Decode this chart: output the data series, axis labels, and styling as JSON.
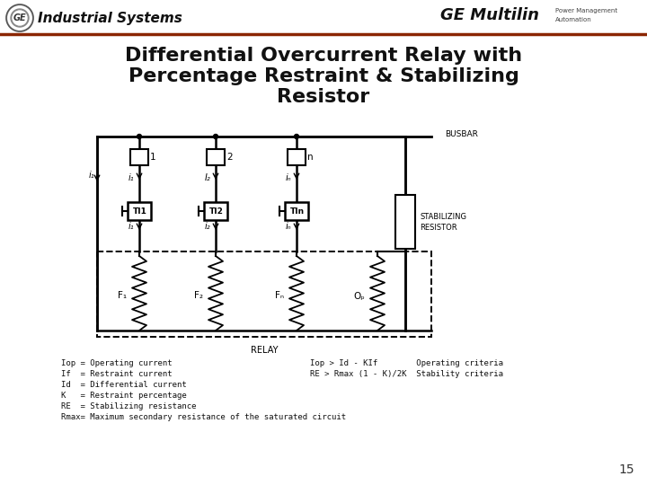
{
  "title_line1": "Differential Overcurrent Relay with",
  "title_line2": "Percentage Restraint & Stabilizing",
  "title_line3": "Resistor",
  "header_text": "Industrial Systems",
  "ge_multilin": "GE Multilin",
  "bg_color": "#ffffff",
  "accent_color": "#8B2500",
  "legend_lines": [
    "Iop = Operating current",
    "If  = Restraint current",
    "Id  = Differential current",
    "K   = Restraint percentage",
    "RE  = Stabilizing resistance",
    "Rmax= Maximum secondary resistance of the saturated circuit"
  ],
  "criteria_lines": [
    "Iop > Id - KIf        Operating criteria",
    "RE > Rmax (1 - K)/2K  Stability criteria"
  ],
  "page_number": "15"
}
